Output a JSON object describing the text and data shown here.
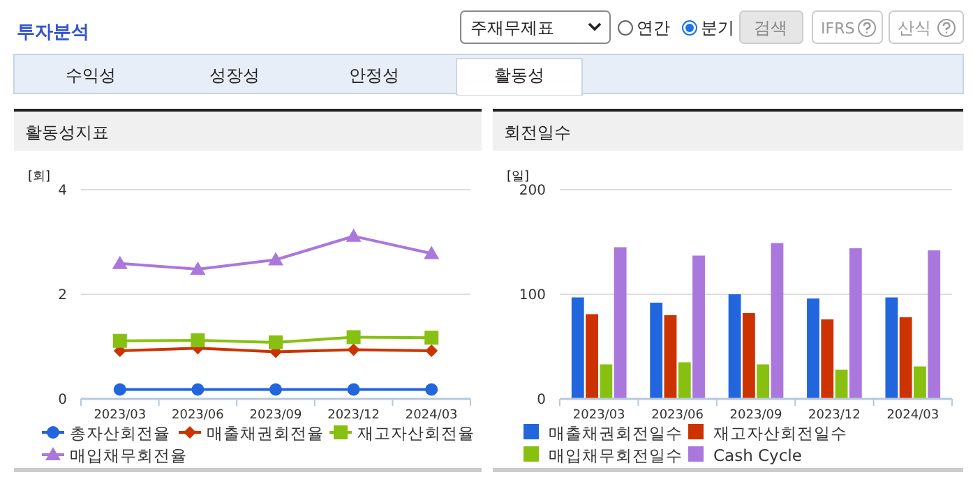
{
  "chart_data": [
    {
      "type": "other",
      "title": "투자분석",
      "annotations": [
        "주재무제표",
        "연간",
        "분기",
        "검색",
        "IFRS",
        "산식",
        "수익성",
        "성장성",
        "안정성",
        "활동성"
      ]
    },
    {
      "type": "line",
      "title": "활동성지표",
      "ylabel": "[회]",
      "categories": [
        "2023/03",
        "2023/06",
        "2023/09",
        "2023/12",
        "2024/03"
      ],
      "ylim": [
        0,
        4
      ],
      "yticks": [
        0,
        2,
        4
      ],
      "grid": "y",
      "legend": "bottom",
      "series": [
        {
          "name": "총자산회전율",
          "color": "#2266dd",
          "marker": "circle",
          "values": [
            0.18,
            0.18,
            0.18,
            0.18,
            0.18
          ]
        },
        {
          "name": "매출채권회전율",
          "color": "#cc3300",
          "marker": "diamond",
          "values": [
            0.92,
            0.97,
            0.9,
            0.94,
            0.92
          ]
        },
        {
          "name": "재고자산회전율",
          "color": "#88c011",
          "marker": "square",
          "values": [
            1.11,
            1.12,
            1.08,
            1.18,
            1.17
          ]
        },
        {
          "name": "매입채무회전율",
          "color": "#aa77dd",
          "marker": "triangle",
          "values": [
            2.59,
            2.48,
            2.66,
            3.11,
            2.78
          ]
        }
      ]
    },
    {
      "type": "bar",
      "title": "회전일수",
      "ylabel": "[일]",
      "categories": [
        "2023/03",
        "2023/06",
        "2023/09",
        "2023/12",
        "2024/03"
      ],
      "ylim": [
        0,
        200
      ],
      "yticks": [
        0,
        100,
        200
      ],
      "grid": "y",
      "legend": "bottom",
      "series": [
        {
          "name": "매출채권회전일수",
          "color": "#2266dd",
          "values": [
            97,
            92,
            100,
            96,
            97
          ]
        },
        {
          "name": "재고자산회전일수",
          "color": "#cc3300",
          "values": [
            81,
            80,
            82,
            76,
            78
          ]
        },
        {
          "name": "매입채무회전일수",
          "color": "#88c011",
          "values": [
            33,
            35,
            33,
            28,
            31
          ]
        },
        {
          "name": "Cash Cycle",
          "color": "#aa77dd",
          "values": [
            145,
            137,
            149,
            144,
            142
          ]
        }
      ]
    }
  ]
}
